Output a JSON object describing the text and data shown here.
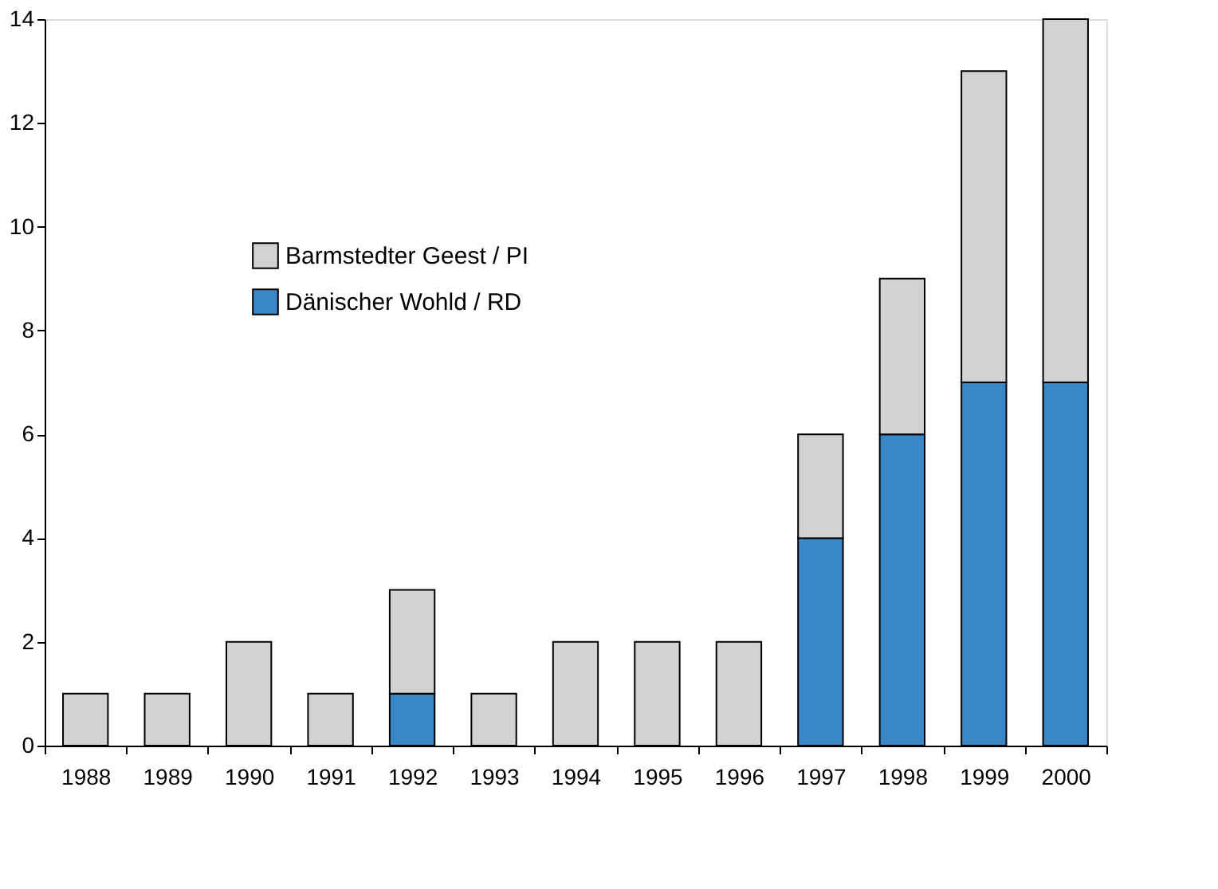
{
  "chart_data": {
    "type": "bar",
    "stacked": true,
    "categories": [
      "1988",
      "1989",
      "1990",
      "1991",
      "1992",
      "1993",
      "1994",
      "1995",
      "1996",
      "1997",
      "1998",
      "1999",
      "2000"
    ],
    "series": [
      {
        "name": "Dänischer Wohld / RD",
        "color": "#3a87c8",
        "values": [
          null,
          null,
          null,
          null,
          1,
          null,
          null,
          null,
          null,
          4,
          6,
          7,
          7
        ]
      },
      {
        "name": "Barmstedter Geest / PI",
        "color": "#d2d2d2",
        "values": [
          1,
          1,
          2,
          1,
          2,
          1,
          2,
          2,
          2,
          2,
          3,
          6,
          7
        ]
      }
    ],
    "ylim": [
      0,
      14
    ],
    "yticks": [
      0,
      2,
      4,
      6,
      8,
      10,
      12,
      14
    ],
    "grid": false,
    "legend": "top left"
  }
}
